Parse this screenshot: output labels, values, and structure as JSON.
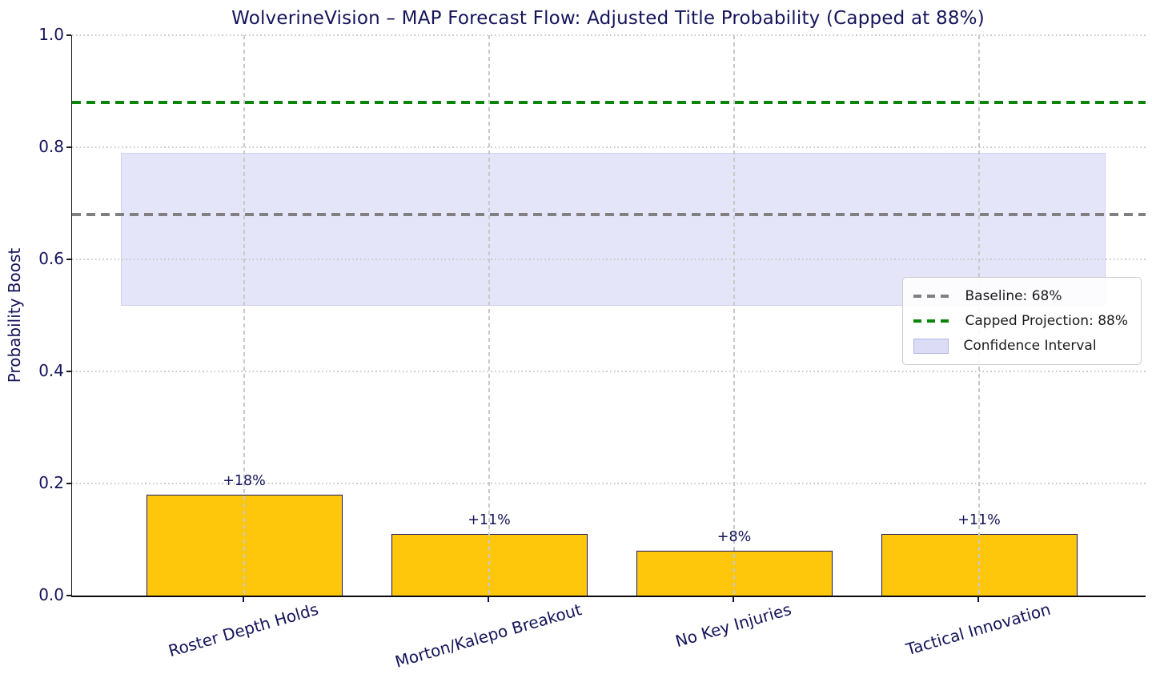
{
  "chart_data": {
    "type": "bar",
    "title": "WolverineVision – MAP Forecast Flow: Adjusted Title Probability (Capped at 88%)",
    "xlabel": "",
    "ylabel": "Probability Boost",
    "ylim": [
      0.0,
      1.0
    ],
    "yticks": [
      0.0,
      0.2,
      0.4,
      0.6,
      0.8,
      1.0
    ],
    "grid": true,
    "categories": [
      "Roster Depth Holds",
      "Morton/Kalepo Breakout",
      "No Key Injuries",
      "Tactical Innovation"
    ],
    "values": [
      0.18,
      0.11,
      0.08,
      0.11
    ],
    "bar_labels": [
      "+18%",
      "+11%",
      "+8%",
      "+11%"
    ],
    "bar_color": "#FFC70B",
    "bar_edge_color": "#16166B",
    "reference_lines": [
      {
        "name": "baseline",
        "value": 0.68,
        "color": "#808080",
        "style": "dashed",
        "label": "Baseline: 68%"
      },
      {
        "name": "capped-projection",
        "value": 0.88,
        "color": "#0A850A",
        "style": "dashed",
        "label": "Capped Projection: 88%"
      }
    ],
    "confidence_band": {
      "from": 0.52,
      "to": 0.79,
      "color": "#dcdcf7",
      "label": "Confidence Interval"
    },
    "legend": {
      "position": "center-right",
      "items": [
        {
          "swatch": "line-dashed",
          "color": "#808080",
          "label": "Baseline: 68%"
        },
        {
          "swatch": "line-dashed",
          "color": "#0A850A",
          "label": "Capped Projection: 88%"
        },
        {
          "swatch": "patch",
          "color": "#dcdcf7",
          "label": "Confidence Interval"
        }
      ]
    },
    "text_color": "#14145A"
  }
}
